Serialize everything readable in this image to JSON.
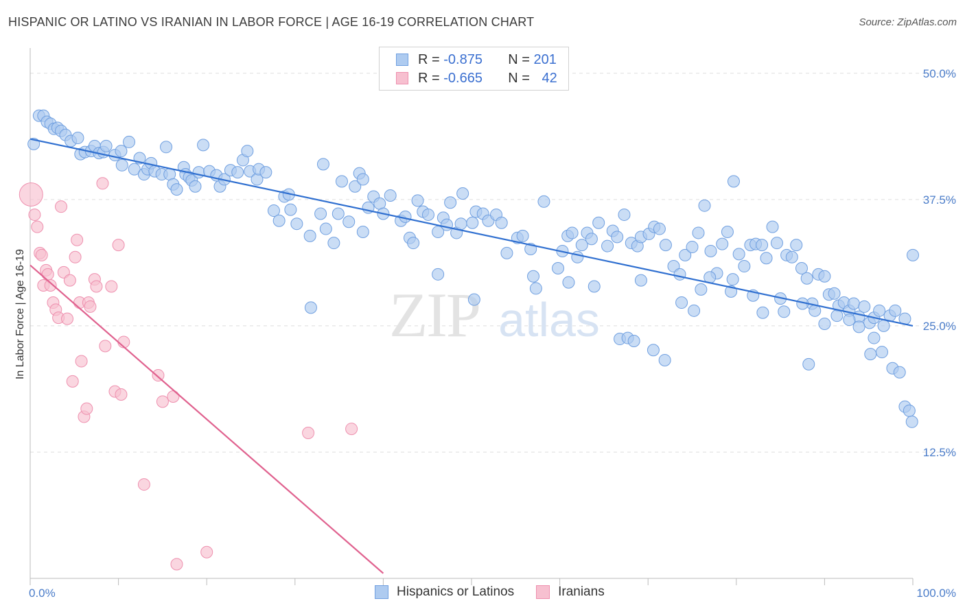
{
  "header": {
    "title": "HISPANIC OR LATINO VS IRANIAN IN LABOR FORCE | AGE 16-19 CORRELATION CHART",
    "source": "Source: ZipAtlas.com"
  },
  "watermark": {
    "zip": "ZIP",
    "atlas": "atlas"
  },
  "legend": {
    "rows": [
      {
        "r_label": "R = ",
        "r_value": "-0.875",
        "n_label": "N = ",
        "n_value": "201"
      },
      {
        "r_label": "R = ",
        "r_value": "-0.665",
        "n_label": "N = ",
        "n_value": "42"
      }
    ]
  },
  "bottom_legend": {
    "items": [
      {
        "label": "Hispanics or Latinos"
      },
      {
        "label": "Iranians"
      }
    ]
  },
  "colors": {
    "blue_fill": "#aecbf0",
    "blue_stroke": "#6f9fe0",
    "blue_line": "#2f6fd0",
    "pink_fill": "#f7c0d0",
    "pink_stroke": "#ee8fae",
    "pink_line": "#e0628f",
    "tick_label": "#4a7cc9",
    "grid": "#dddddd"
  },
  "chart_data": {
    "type": "scatter",
    "title": "HISPANIC OR LATINO VS IRANIAN IN LABOR FORCE | AGE 16-19 CORRELATION CHART",
    "xlabel": "",
    "ylabel": "In Labor Force | Age 16-19",
    "xlim": [
      0,
      100
    ],
    "ylim": [
      0,
      52.5
    ],
    "x_tick_labels": [
      "0.0%",
      "100.0%"
    ],
    "y_ticks": [
      12.5,
      25.0,
      37.5,
      50.0
    ],
    "y_tick_labels": [
      "12.5%",
      "25.0%",
      "37.5%",
      "50.0%"
    ],
    "grid": "horizontal dashed",
    "legend_placement": "top-center",
    "series": [
      {
        "name": "Hispanics or Latinos",
        "trend": {
          "x": [
            0,
            100
          ],
          "y": [
            43.5,
            25.0
          ]
        },
        "points": [
          [
            0.4,
            43.0
          ],
          [
            1.0,
            45.8
          ],
          [
            1.5,
            45.8
          ],
          [
            1.9,
            45.2
          ],
          [
            2.3,
            45.0
          ],
          [
            2.7,
            44.5
          ],
          [
            3.1,
            44.6
          ],
          [
            3.5,
            44.3
          ],
          [
            4.0,
            43.9
          ],
          [
            4.6,
            43.3
          ],
          [
            5.4,
            43.6
          ],
          [
            5.7,
            42.0
          ],
          [
            6.2,
            42.2
          ],
          [
            6.9,
            42.3
          ],
          [
            7.3,
            42.8
          ],
          [
            7.8,
            42.1
          ],
          [
            8.3,
            42.2
          ],
          [
            8.6,
            42.8
          ],
          [
            9.6,
            41.9
          ],
          [
            10.3,
            42.3
          ],
          [
            10.4,
            40.9
          ],
          [
            11.2,
            43.2
          ],
          [
            11.8,
            40.5
          ],
          [
            12.4,
            41.6
          ],
          [
            12.9,
            40.0
          ],
          [
            13.3,
            40.5
          ],
          [
            13.7,
            41.1
          ],
          [
            14.1,
            40.3
          ],
          [
            14.9,
            40.0
          ],
          [
            15.4,
            42.7
          ],
          [
            15.8,
            40.0
          ],
          [
            16.2,
            39.0
          ],
          [
            16.6,
            38.5
          ],
          [
            17.4,
            40.7
          ],
          [
            17.6,
            40.0
          ],
          [
            18.0,
            39.7
          ],
          [
            18.3,
            39.4
          ],
          [
            18.7,
            38.8
          ],
          [
            19.1,
            40.2
          ],
          [
            19.6,
            42.9
          ],
          [
            20.3,
            40.3
          ],
          [
            21.1,
            39.9
          ],
          [
            21.5,
            38.8
          ],
          [
            22.0,
            39.5
          ],
          [
            22.7,
            40.4
          ],
          [
            23.5,
            40.2
          ],
          [
            24.1,
            41.4
          ],
          [
            24.6,
            42.3
          ],
          [
            24.9,
            40.3
          ],
          [
            25.7,
            39.5
          ],
          [
            25.9,
            40.5
          ],
          [
            26.7,
            40.2
          ],
          [
            27.6,
            36.4
          ],
          [
            28.2,
            35.4
          ],
          [
            28.8,
            37.8
          ],
          [
            29.3,
            38.0
          ],
          [
            29.5,
            36.5
          ],
          [
            30.2,
            35.1
          ],
          [
            31.7,
            33.9
          ],
          [
            32.9,
            36.1
          ],
          [
            33.2,
            41.0
          ],
          [
            33.5,
            34.6
          ],
          [
            34.4,
            33.2
          ],
          [
            34.9,
            36.1
          ],
          [
            35.3,
            39.3
          ],
          [
            36.1,
            35.3
          ],
          [
            36.8,
            38.8
          ],
          [
            37.3,
            40.1
          ],
          [
            37.7,
            39.5
          ],
          [
            38.3,
            36.7
          ],
          [
            38.9,
            37.8
          ],
          [
            39.6,
            37.1
          ],
          [
            40.0,
            36.1
          ],
          [
            40.8,
            37.9
          ],
          [
            42.0,
            35.4
          ],
          [
            42.5,
            35.8
          ],
          [
            43.0,
            33.7
          ],
          [
            43.4,
            33.2
          ],
          [
            43.9,
            37.4
          ],
          [
            44.5,
            36.3
          ],
          [
            45.1,
            36.0
          ],
          [
            46.2,
            34.3
          ],
          [
            46.8,
            35.7
          ],
          [
            47.2,
            35.0
          ],
          [
            47.6,
            37.2
          ],
          [
            48.3,
            34.2
          ],
          [
            48.8,
            35.1
          ],
          [
            49.0,
            38.1
          ],
          [
            50.1,
            35.2
          ],
          [
            50.5,
            36.3
          ],
          [
            51.3,
            36.1
          ],
          [
            51.9,
            35.4
          ],
          [
            52.8,
            36.0
          ],
          [
            53.4,
            35.2
          ],
          [
            54.0,
            32.2
          ],
          [
            55.2,
            33.7
          ],
          [
            55.8,
            33.9
          ],
          [
            56.7,
            32.6
          ],
          [
            57.0,
            29.9
          ],
          [
            57.3,
            28.7
          ],
          [
            58.2,
            37.3
          ],
          [
            59.8,
            30.7
          ],
          [
            60.3,
            32.4
          ],
          [
            60.9,
            33.9
          ],
          [
            61.4,
            34.2
          ],
          [
            62.0,
            31.8
          ],
          [
            62.5,
            33.0
          ],
          [
            63.1,
            34.2
          ],
          [
            63.6,
            33.6
          ],
          [
            64.4,
            35.2
          ],
          [
            65.4,
            32.9
          ],
          [
            66.0,
            34.4
          ],
          [
            66.5,
            33.8
          ],
          [
            67.3,
            36.0
          ],
          [
            68.1,
            33.2
          ],
          [
            68.8,
            32.9
          ],
          [
            69.2,
            33.8
          ],
          [
            70.1,
            34.1
          ],
          [
            70.7,
            34.8
          ],
          [
            71.3,
            34.6
          ],
          [
            72.0,
            33.0
          ],
          [
            72.9,
            30.9
          ],
          [
            73.6,
            30.1
          ],
          [
            74.2,
            32.0
          ],
          [
            75.0,
            32.8
          ],
          [
            75.7,
            34.2
          ],
          [
            76.4,
            36.9
          ],
          [
            77.1,
            32.4
          ],
          [
            77.8,
            30.2
          ],
          [
            78.4,
            33.1
          ],
          [
            79.0,
            34.3
          ],
          [
            79.6,
            29.6
          ],
          [
            80.3,
            32.1
          ],
          [
            80.9,
            30.9
          ],
          [
            81.6,
            33.0
          ],
          [
            82.2,
            33.1
          ],
          [
            82.9,
            33.0
          ],
          [
            83.4,
            31.7
          ],
          [
            84.1,
            34.8
          ],
          [
            84.6,
            33.2
          ],
          [
            85.0,
            27.7
          ],
          [
            85.7,
            32.0
          ],
          [
            86.3,
            31.8
          ],
          [
            86.8,
            33.0
          ],
          [
            87.4,
            30.7
          ],
          [
            88.0,
            29.7
          ],
          [
            88.6,
            27.2
          ],
          [
            89.3,
            30.1
          ],
          [
            90.0,
            29.9
          ],
          [
            90.5,
            28.1
          ],
          [
            91.1,
            28.2
          ],
          [
            91.6,
            27.0
          ],
          [
            92.2,
            27.3
          ],
          [
            92.8,
            26.5
          ],
          [
            93.3,
            27.2
          ],
          [
            93.9,
            25.9
          ],
          [
            94.5,
            26.9
          ],
          [
            95.1,
            25.3
          ],
          [
            95.6,
            25.8
          ],
          [
            96.2,
            26.5
          ],
          [
            96.7,
            25.0
          ],
          [
            97.4,
            26.0
          ],
          [
            98.0,
            26.5
          ],
          [
            99.1,
            25.7
          ],
          [
            100.0,
            32.0
          ],
          [
            63.9,
            28.9
          ],
          [
            66.8,
            23.7
          ],
          [
            67.7,
            23.8
          ],
          [
            68.4,
            23.5
          ],
          [
            70.6,
            22.6
          ],
          [
            71.9,
            21.6
          ],
          [
            73.8,
            27.3
          ],
          [
            75.2,
            26.5
          ],
          [
            76.0,
            28.6
          ],
          [
            77.0,
            29.8
          ],
          [
            79.4,
            28.4
          ],
          [
            81.9,
            28.0
          ],
          [
            83.0,
            26.3
          ],
          [
            85.4,
            26.4
          ],
          [
            87.5,
            27.2
          ],
          [
            88.9,
            26.5
          ],
          [
            90.0,
            25.2
          ],
          [
            91.4,
            26.0
          ],
          [
            92.8,
            25.6
          ],
          [
            93.9,
            24.9
          ],
          [
            95.6,
            23.8
          ],
          [
            96.5,
            22.4
          ],
          [
            97.7,
            20.8
          ],
          [
            98.5,
            20.4
          ],
          [
            99.1,
            17.0
          ],
          [
            99.6,
            16.6
          ],
          [
            99.9,
            15.5
          ],
          [
            95.2,
            22.2
          ],
          [
            88.2,
            21.2
          ],
          [
            46.2,
            30.1
          ],
          [
            31.8,
            26.8
          ],
          [
            69.2,
            29.5
          ],
          [
            79.7,
            39.3
          ],
          [
            50.3,
            27.6
          ],
          [
            37.7,
            34.3
          ],
          [
            61.0,
            29.3
          ]
        ]
      },
      {
        "name": "Iranians",
        "trend": {
          "x": [
            0,
            40
          ],
          "y": [
            31.0,
            0.5
          ]
        },
        "points": [
          [
            0.1,
            38.0
          ],
          [
            0.5,
            36.0
          ],
          [
            0.8,
            34.8
          ],
          [
            1.1,
            32.2
          ],
          [
            1.3,
            32.0
          ],
          [
            1.5,
            29.0
          ],
          [
            1.8,
            30.5
          ],
          [
            2.0,
            30.1
          ],
          [
            2.3,
            29.0
          ],
          [
            2.6,
            27.3
          ],
          [
            2.9,
            26.6
          ],
          [
            3.2,
            25.8
          ],
          [
            3.5,
            36.8
          ],
          [
            3.8,
            30.3
          ],
          [
            4.2,
            25.7
          ],
          [
            4.5,
            29.5
          ],
          [
            4.8,
            19.5
          ],
          [
            5.1,
            31.8
          ],
          [
            5.3,
            33.5
          ],
          [
            5.6,
            27.3
          ],
          [
            5.8,
            21.5
          ],
          [
            6.1,
            16.0
          ],
          [
            6.4,
            16.8
          ],
          [
            6.6,
            27.3
          ],
          [
            6.8,
            26.9
          ],
          [
            7.3,
            29.6
          ],
          [
            7.5,
            28.9
          ],
          [
            8.2,
            39.1
          ],
          [
            8.5,
            23.0
          ],
          [
            9.2,
            28.9
          ],
          [
            9.6,
            18.5
          ],
          [
            10.0,
            33.0
          ],
          [
            10.3,
            18.2
          ],
          [
            10.6,
            23.4
          ],
          [
            12.9,
            9.3
          ],
          [
            14.5,
            20.1
          ],
          [
            15.0,
            17.5
          ],
          [
            16.2,
            18.0
          ],
          [
            16.6,
            1.4
          ],
          [
            20.0,
            2.6
          ],
          [
            31.5,
            14.4
          ],
          [
            36.4,
            14.8
          ]
        ]
      }
    ]
  }
}
